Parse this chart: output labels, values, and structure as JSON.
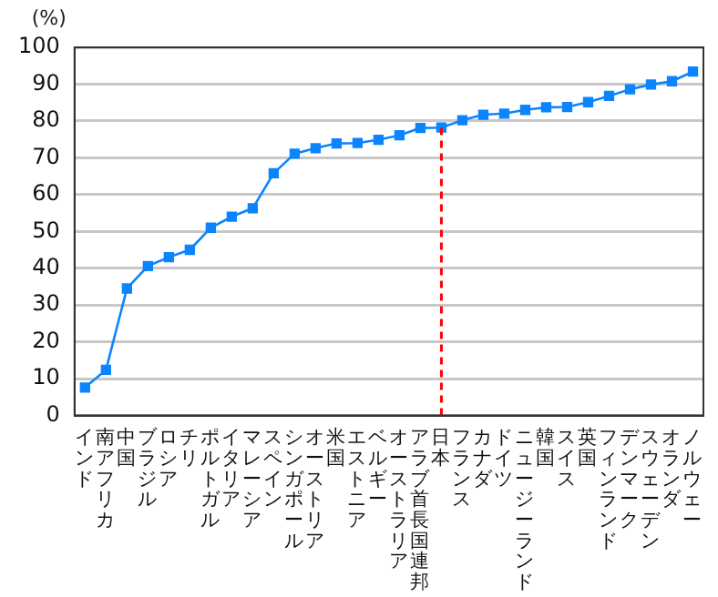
{
  "chart_data": {
    "type": "line",
    "ylabel": "(%)",
    "categories": [
      "インド",
      "南アフリカ",
      "中国",
      "ブラジル",
      "ロシア",
      "チリ",
      "ポルトガル",
      "イタリア",
      "マレーシア",
      "スペイン",
      "シンガポール",
      "オーストリア",
      "米国",
      "エストニア",
      "ベルギー",
      "オーストラリア",
      "アラブ首長国連邦",
      "日本",
      "フランス",
      "カナダ",
      "ドイツ",
      "ニュージーランド",
      "韓国",
      "スイス",
      "英国",
      "フィンランド",
      "デンマーク",
      "スウェーデン",
      "オランダ",
      "ノルウェー"
    ],
    "series": [
      {
        "color": "#0a84ff",
        "values": [
          7.6,
          12.4,
          34.5,
          40.6,
          43,
          45,
          51,
          54,
          56.3,
          65.8,
          71.1,
          72.6,
          73.9,
          74,
          74.9,
          76.1,
          78.1,
          78.2,
          80.2,
          81.7,
          82,
          83,
          83.7,
          83.8,
          85.1,
          86.8,
          88.6,
          89.9,
          90.8,
          93.4
        ]
      }
    ],
    "ylim": [
      0,
      100
    ],
    "yticks": [
      0,
      10,
      20,
      30,
      40,
      50,
      60,
      70,
      80,
      90,
      100
    ],
    "grid": "y",
    "marker": "square",
    "line_style": "solid",
    "legend": false,
    "ref_lines": [
      {
        "axis": "x",
        "value": "日本",
        "color": "#ff0000",
        "line_style": "dashed"
      }
    ]
  }
}
